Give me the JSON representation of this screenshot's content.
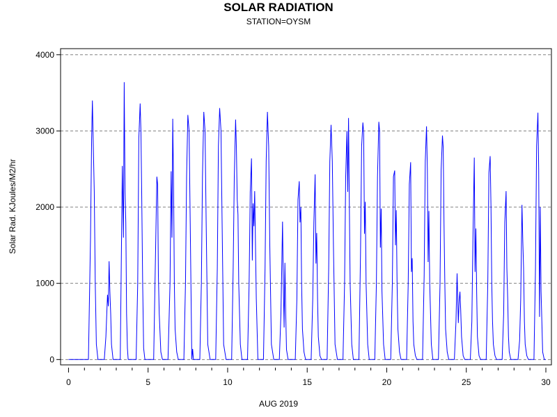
{
  "chart_data": {
    "type": "line",
    "title": "SOLAR RADIATION",
    "subtitle": "STATION=OYSM",
    "xlabel": "AUG 2019",
    "ylabel": "Solar Rad. KJoules/M2/hr",
    "xlim": [
      -0.5,
      30.35
    ],
    "ylim": [
      -70,
      4080
    ],
    "xticks": [
      0,
      5,
      10,
      15,
      20,
      25,
      30
    ],
    "xtick_labels": [
      "0",
      "5",
      "10",
      "15",
      "20",
      "25",
      "30"
    ],
    "yticks": [
      0,
      1000,
      2000,
      3000,
      4000
    ],
    "ytick_labels": [
      "0",
      "1000",
      "2000",
      "3000",
      "4000"
    ],
    "grid": "horizontal-dashed",
    "line_color": "#0000ff",
    "daily_peaks": [
      3400,
      1290,
      3640,
      3360,
      2400,
      3160,
      3210,
      3250,
      3300,
      3150,
      2640,
      3250,
      1810,
      2340,
      2430,
      3080,
      3170,
      3110,
      3120,
      2480,
      2590,
      3060,
      2940,
      1130,
      2650,
      2670,
      2210,
      2030,
      3240,
      0
    ],
    "series": [
      {
        "x": [
          0,
          1.25,
          1.38,
          1.45,
          1.5,
          1.55,
          1.62,
          1.68,
          1.75,
          1.85,
          2,
          2.25,
          2.35,
          2.45,
          2.5,
          2.55,
          2.6,
          2.65,
          2.7,
          2.8,
          2.9,
          3.25,
          3.38,
          3.45,
          3.5,
          3.55,
          3.6,
          3.65,
          3.7,
          3.75,
          3.85,
          4,
          4.25,
          4.35,
          4.42,
          4.5,
          4.55,
          4.6,
          4.66,
          4.72,
          4.8,
          4.9,
          5.0,
          5.1,
          5.35,
          5.45,
          5.55,
          5.6,
          5.65,
          5.7,
          5.8,
          5.9,
          6.25,
          6.38,
          6.45,
          6.5,
          6.55,
          6.6,
          6.65,
          6.7,
          6.8,
          6.9,
          7.25,
          7.35,
          7.42,
          7.5,
          7.58,
          7.65,
          7.75,
          7.8,
          7.85,
          7.9,
          8.25,
          8.35,
          8.42,
          8.5,
          8.58,
          8.65,
          8.75,
          8.9,
          9.25,
          9.35,
          9.42,
          9.5,
          9.58,
          9.65,
          9.75,
          9.9,
          10.25,
          10.35,
          10.42,
          10.5,
          10.55,
          10.6,
          10.65,
          10.7,
          10.8,
          10.9,
          11.25,
          11.35,
          11.42,
          11.5,
          11.55,
          11.6,
          11.65,
          11.7,
          11.8,
          11.9,
          12.25,
          12.35,
          12.42,
          12.5,
          12.58,
          12.65,
          12.75,
          12.9,
          13.25,
          13.35,
          13.45,
          13.5,
          13.55,
          13.6,
          13.65,
          13.7,
          13.8,
          13.9,
          14.25,
          14.35,
          14.42,
          14.5,
          14.55,
          14.6,
          14.65,
          14.7,
          14.8,
          14.9,
          15.25,
          15.35,
          15.42,
          15.5,
          15.55,
          15.6,
          15.65,
          15.7,
          15.8,
          15.9,
          16.25,
          16.35,
          16.42,
          16.5,
          16.58,
          16.65,
          16.75,
          16.9,
          17.25,
          17.35,
          17.42,
          17.5,
          17.55,
          17.6,
          17.65,
          17.7,
          17.8,
          17.9,
          18.25,
          18.35,
          18.42,
          18.5,
          18.55,
          18.6,
          18.65,
          18.7,
          18.8,
          18.9,
          19.25,
          19.35,
          19.42,
          19.5,
          19.55,
          19.6,
          19.65,
          19.7,
          19.8,
          19.9,
          20.25,
          20.35,
          20.42,
          20.5,
          20.55,
          20.6,
          20.65,
          20.7,
          20.8,
          20.9,
          21.25,
          21.35,
          21.42,
          21.5,
          21.55,
          21.6,
          21.65,
          21.7,
          21.8,
          21.9,
          22.25,
          22.35,
          22.42,
          22.5,
          22.55,
          22.6,
          22.65,
          22.7,
          22.8,
          22.9,
          23.25,
          23.35,
          23.42,
          23.5,
          23.55,
          23.6,
          23.65,
          23.7,
          23.8,
          23.9,
          24.25,
          24.35,
          24.42,
          24.5,
          24.55,
          24.6,
          24.65,
          24.7,
          24.8,
          24.9,
          25.25,
          25.35,
          25.42,
          25.5,
          25.55,
          25.6,
          25.65,
          25.7,
          25.8,
          25.9,
          26.25,
          26.35,
          26.42,
          26.5,
          26.55,
          26.6,
          26.65,
          26.7,
          26.8,
          26.9,
          27.25,
          27.35,
          27.42,
          27.5,
          27.55,
          27.6,
          27.65,
          27.7,
          27.8,
          27.9,
          28.25,
          28.35,
          28.42,
          28.5,
          28.55,
          28.6,
          28.65,
          28.7,
          28.8,
          28.9,
          29.25,
          29.35,
          29.42,
          29.5,
          29.55,
          29.6,
          29.65,
          29.7,
          29.8,
          29.9,
          30
        ],
        "y": [
          0,
          0,
          1600,
          2900,
          3400,
          2900,
          2200,
          1000,
          200,
          0,
          0,
          0,
          300,
          850,
          700,
          1290,
          900,
          600,
          200,
          0,
          0,
          0,
          2540,
          1600,
          3640,
          2200,
          1800,
          600,
          150,
          0,
          0,
          0,
          0,
          1000,
          2900,
          3360,
          3000,
          2200,
          1000,
          150,
          0,
          0,
          0,
          0,
          0,
          1200,
          2400,
          2300,
          1100,
          600,
          100,
          0,
          0,
          1000,
          2470,
          1600,
          3160,
          2300,
          1000,
          400,
          100,
          0,
          0,
          1000,
          2400,
          3210,
          3000,
          1800,
          0,
          140,
          0,
          0,
          0,
          1000,
          2400,
          3250,
          3000,
          1800,
          200,
          0,
          0,
          1200,
          2800,
          3300,
          3000,
          1800,
          200,
          0,
          0,
          1200,
          2400,
          3150,
          2800,
          2100,
          1900,
          1000,
          200,
          0,
          0,
          1000,
          2200,
          2640,
          1300,
          2050,
          1750,
          2210,
          800,
          0,
          0,
          1200,
          2600,
          3250,
          2800,
          1500,
          200,
          0,
          0,
          600,
          1810,
          1000,
          420,
          1270,
          600,
          130,
          0,
          0,
          0,
          800,
          2100,
          2340,
          1800,
          2000,
          1000,
          400,
          100,
          0,
          0,
          800,
          1800,
          2430,
          1260,
          1660,
          800,
          300,
          50,
          0,
          0,
          1200,
          2600,
          3080,
          2600,
          1500,
          200,
          0,
          0,
          1000,
          2400,
          3000,
          2200,
          3170,
          2000,
          1000,
          200,
          0,
          0,
          1400,
          2800,
          3110,
          2980,
          1650,
          2070,
          1000,
          200,
          0,
          0,
          1000,
          2400,
          3120,
          3000,
          1470,
          1980,
          900,
          200,
          0,
          0,
          1000,
          2400,
          2480,
          1500,
          1960,
          1000,
          400,
          100,
          0,
          0,
          1000,
          2300,
          2590,
          1150,
          1330,
          500,
          200,
          50,
          0,
          0,
          1100,
          2600,
          3060,
          2500,
          1280,
          1950,
          1000,
          200,
          0,
          0,
          1000,
          2490,
          2940,
          2780,
          1800,
          1000,
          400,
          100,
          0,
          0,
          500,
          1130,
          480,
          780,
          890,
          650,
          300,
          50,
          0,
          0,
          500,
          1600,
          2650,
          1150,
          1720,
          900,
          300,
          50,
          0,
          0,
          1000,
          2450,
          2670,
          2000,
          1000,
          500,
          200,
          50,
          0,
          0,
          600,
          1800,
          2210,
          1200,
          800,
          300,
          100,
          0,
          0,
          0,
          250,
          800,
          2030,
          1550,
          1200,
          500,
          200,
          50,
          0,
          0,
          1200,
          2800,
          3240,
          2500,
          560,
          2000,
          900,
          100,
          0,
          0
        ]
      }
    ]
  }
}
